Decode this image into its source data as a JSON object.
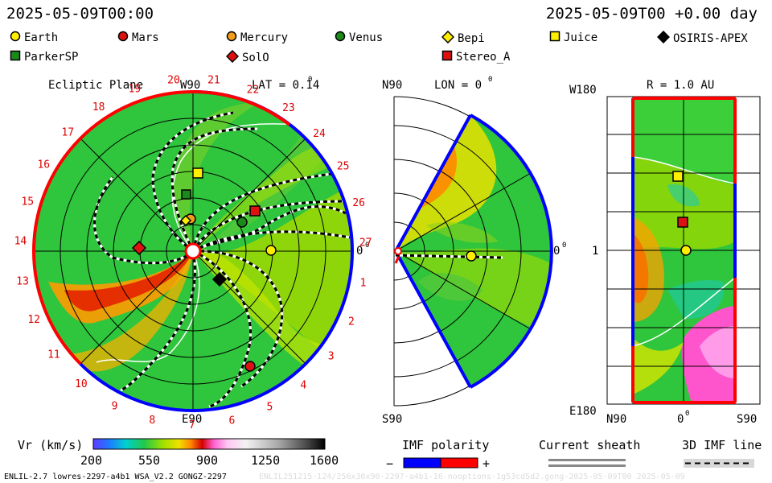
{
  "header": {
    "left_time": "2025-05-09T00:00",
    "right_time": "2025-05-09T00 +0.00 day"
  },
  "legend": [
    {
      "label": "Earth",
      "shape": "circle",
      "color": "#ffee00"
    },
    {
      "label": "Mars",
      "shape": "circle",
      "color": "#dd1111"
    },
    {
      "label": "Mercury",
      "shape": "circle",
      "color": "#f39c1a"
    },
    {
      "label": "Venus",
      "shape": "circle",
      "color": "#1a8a1a"
    },
    {
      "label": "Bepi",
      "shape": "diamond",
      "color": "#ffee00"
    },
    {
      "label": "Juice",
      "shape": "square",
      "color": "#ffee00"
    },
    {
      "label": "OSIRIS-APEX",
      "shape": "diamond",
      "color": "#000000"
    },
    {
      "label": "ParkerSP",
      "shape": "square",
      "color": "#1a8a1a"
    },
    {
      "label": "SolO",
      "shape": "diamond",
      "color": "#dd1111"
    },
    {
      "label": "Stereo_A",
      "shape": "square",
      "color": "#dd1111"
    }
  ],
  "ecliptic": {
    "title": "Ecliptic Plane",
    "top_label": "W90",
    "bottom_label": "E90",
    "right_label": "0",
    "lat_label": "LAT = 0.14",
    "carrington_numbers": [
      "1",
      "2",
      "3",
      "4",
      "5",
      "6",
      "7",
      "8",
      "9",
      "10",
      "11",
      "12",
      "13",
      "14",
      "15",
      "16",
      "17",
      "18",
      "19",
      "20",
      "21",
      "22",
      "23",
      "24",
      "25",
      "26",
      "27"
    ]
  },
  "meridional": {
    "top_left": "N90",
    "lon_label": "LON = 0",
    "right_label": "0",
    "bottom_left": "S90"
  },
  "cylinder": {
    "top_left": "W180",
    "title": "R = 1.0 AU",
    "mid_left": "1",
    "bottom_left": "E180",
    "x_labels": [
      "N90",
      "0",
      "S90"
    ]
  },
  "colorbar": {
    "title": "Vr (km/s)",
    "ticks": [
      "200",
      "550",
      "900",
      "1250",
      "1600"
    ]
  },
  "imf": {
    "title": "IMF polarity",
    "minus": "−",
    "plus": "+",
    "colors": [
      "#0000ff",
      "#ff0000"
    ]
  },
  "current_sheath": {
    "title": "Current sheath"
  },
  "imf_line": {
    "title": "3D IMF line"
  },
  "footer": {
    "left": "ENLIL-2.7 lowres-2297-a4b1 WSA_V2.2 GONGZ-2297",
    "right": "ENLIL251215-124/256x30x90-2297-a4b1-16-nooptions-1g53cd5d2.gong-2025-05-09T00   2025-05-09"
  }
}
